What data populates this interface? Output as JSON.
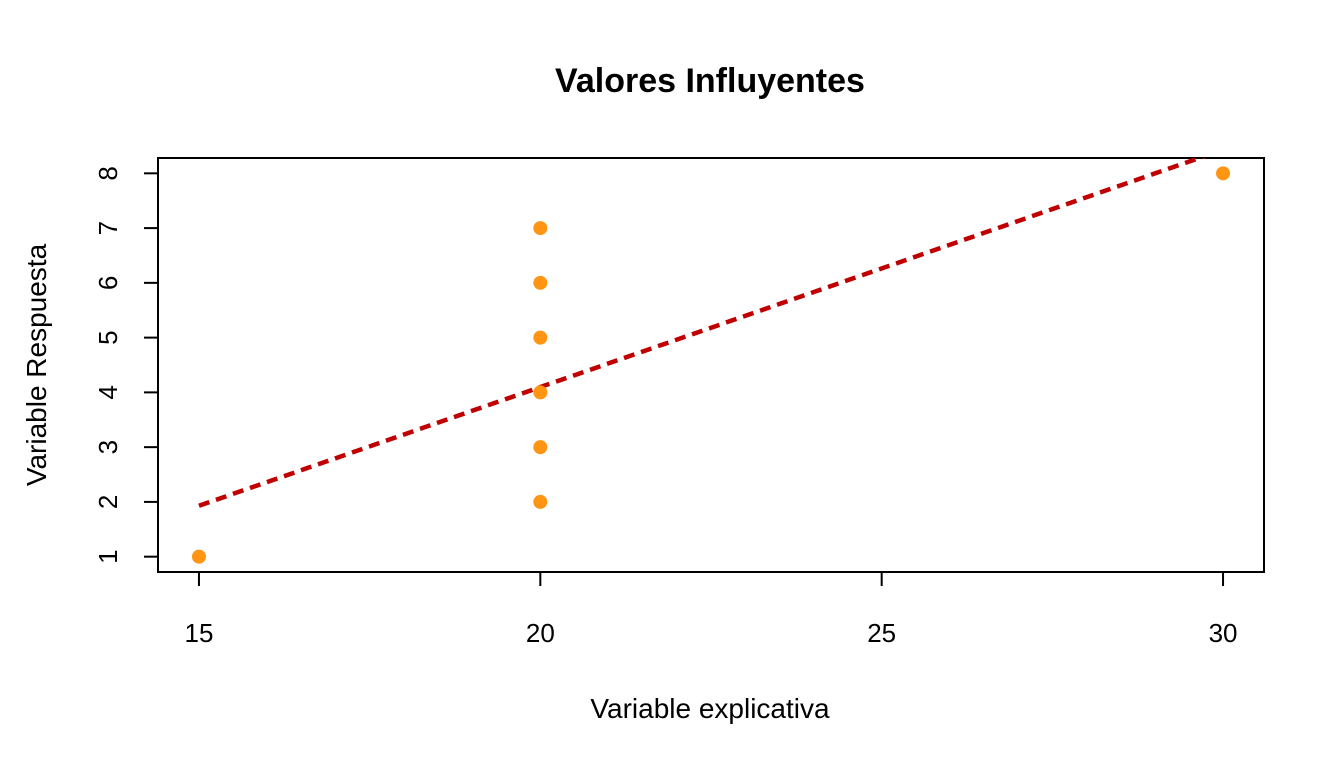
{
  "chart_data": {
    "type": "scatter",
    "title": "Valores Influyentes",
    "xlabel": "Variable explicativa",
    "ylabel": "Variable Respuesta",
    "xlim": [
      14.4,
      30.6
    ],
    "ylim": [
      0.72,
      8.28
    ],
    "x_ticks": [
      15,
      20,
      25,
      30
    ],
    "y_ticks": [
      1,
      2,
      3,
      4,
      5,
      6,
      7,
      8
    ],
    "points": [
      {
        "x": 15,
        "y": 1
      },
      {
        "x": 20,
        "y": 2
      },
      {
        "x": 20,
        "y": 3
      },
      {
        "x": 20,
        "y": 4
      },
      {
        "x": 20,
        "y": 5
      },
      {
        "x": 20,
        "y": 6
      },
      {
        "x": 20,
        "y": 7
      },
      {
        "x": 30,
        "y": 8
      }
    ],
    "regression_line": {
      "x1": 15,
      "y1": 1.93,
      "x2": 30,
      "y2": 8.43,
      "style": "dashed"
    },
    "grid": false,
    "colors": {
      "points": "#FF9512",
      "line": "#C00000",
      "axes": "#000000"
    }
  }
}
